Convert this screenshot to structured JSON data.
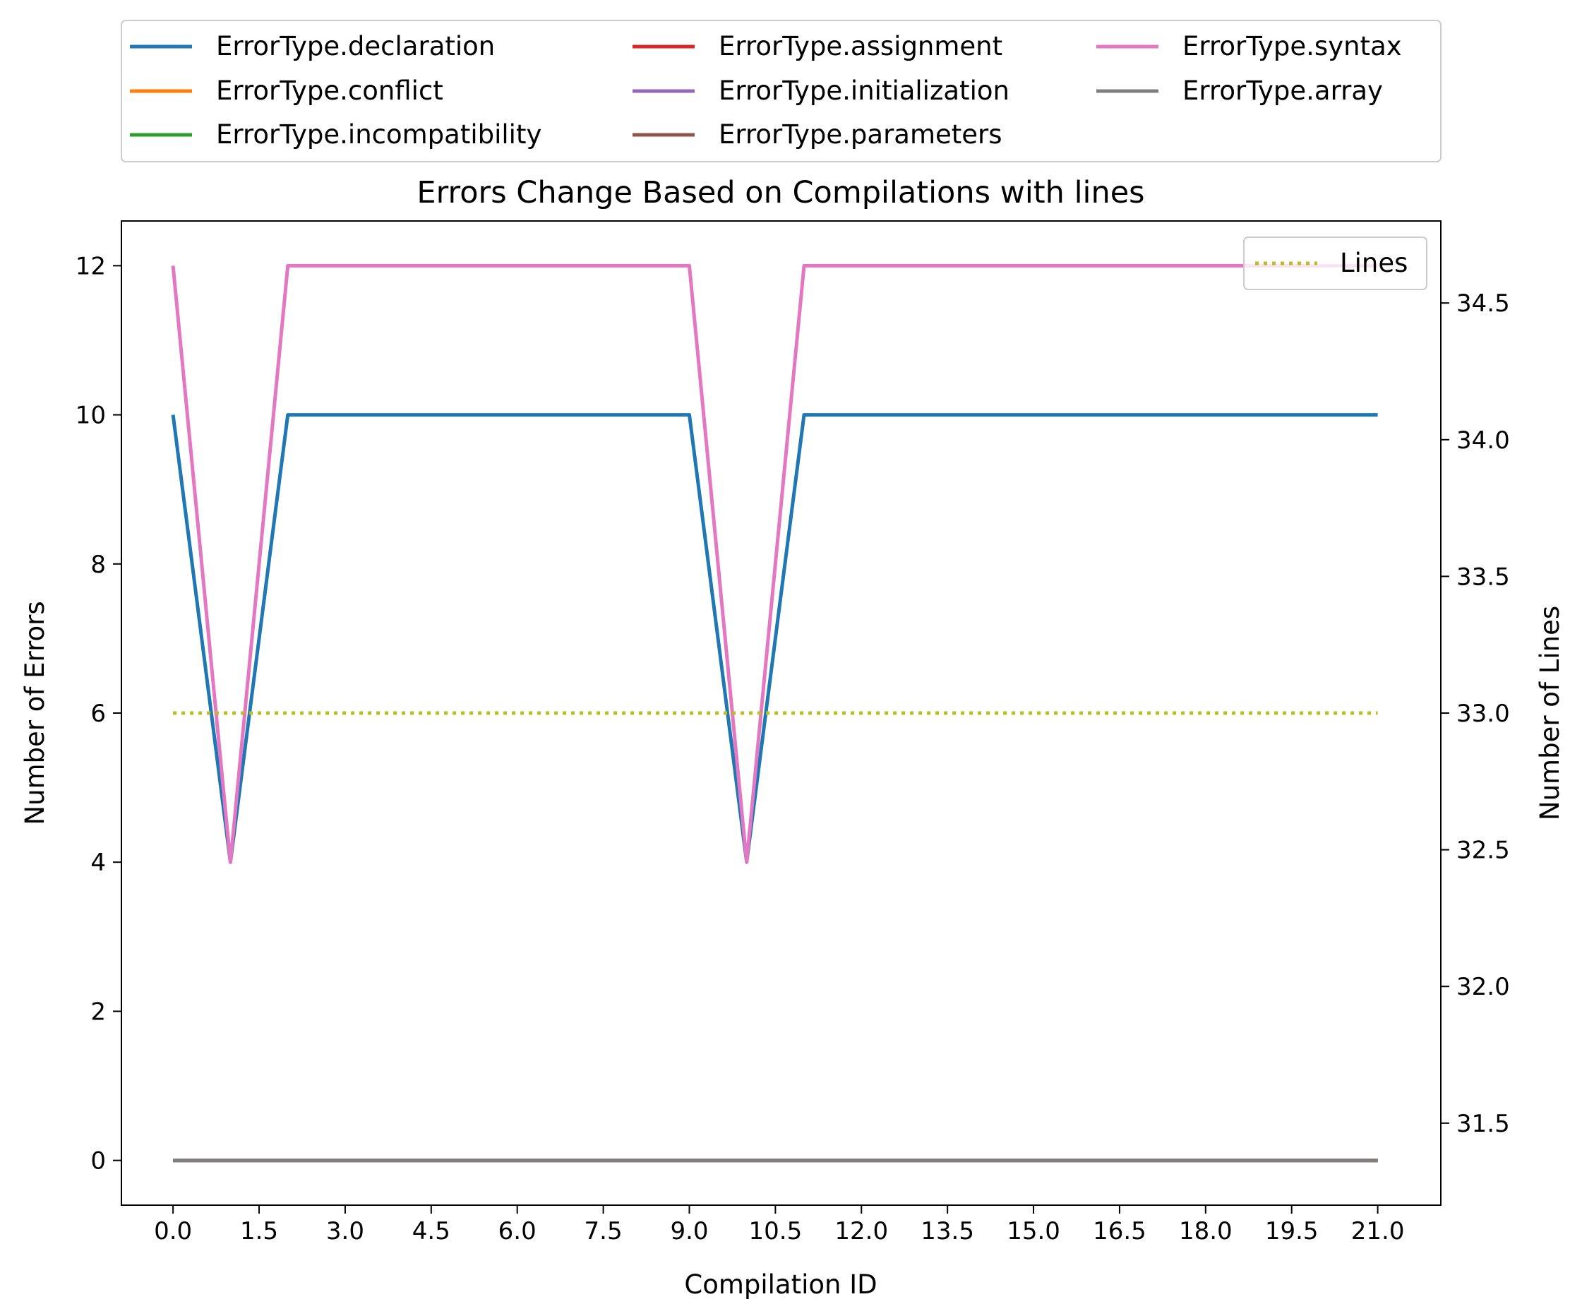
{
  "chart_data": {
    "type": "line",
    "title": "Errors Change Based on Compilations with lines",
    "xlabel": "Compilation ID",
    "ylabel": "Number of Errors",
    "y2label": "Number of Lines",
    "xlim": [
      -0.9,
      22.1
    ],
    "ylim": [
      -0.6,
      12.6
    ],
    "y2lim": [
      31.2,
      34.8
    ],
    "x_ticks": [
      0.0,
      1.5,
      3.0,
      4.5,
      6.0,
      7.5,
      9.0,
      10.5,
      12.0,
      13.5,
      15.0,
      16.5,
      18.0,
      19.5,
      21.0
    ],
    "x_tick_labels": [
      "0.0",
      "1.5",
      "3.0",
      "4.5",
      "6.0",
      "7.5",
      "9.0",
      "10.5",
      "12.0",
      "13.5",
      "15.0",
      "16.5",
      "18.0",
      "19.5",
      "21.0"
    ],
    "y_ticks": [
      0,
      2,
      4,
      6,
      8,
      10,
      12
    ],
    "y_tick_labels": [
      "0",
      "2",
      "4",
      "6",
      "8",
      "10",
      "12"
    ],
    "y2_ticks": [
      31.5,
      32.0,
      32.5,
      33.0,
      33.5,
      34.0,
      34.5
    ],
    "y2_tick_labels": [
      "31.5",
      "32.0",
      "32.5",
      "33.0",
      "33.5",
      "34.0",
      "34.5"
    ],
    "x": [
      0,
      1,
      2,
      3,
      4,
      5,
      6,
      7,
      8,
      9,
      10,
      11,
      12,
      13,
      14,
      15,
      16,
      17,
      18,
      19,
      20,
      21
    ],
    "grid": false,
    "legend_placement": "above plot, 3 columns",
    "series": [
      {
        "name": "ErrorType.declaration",
        "color": "#1f77b4",
        "axis": "left",
        "values": [
          10,
          4,
          10,
          10,
          10,
          10,
          10,
          10,
          10,
          10,
          4,
          10,
          10,
          10,
          10,
          10,
          10,
          10,
          10,
          10,
          10,
          10
        ]
      },
      {
        "name": "ErrorType.conflict",
        "color": "#ff7f0e",
        "axis": "left",
        "values": [
          0,
          0,
          0,
          0,
          0,
          0,
          0,
          0,
          0,
          0,
          0,
          0,
          0,
          0,
          0,
          0,
          0,
          0,
          0,
          0,
          0,
          0
        ]
      },
      {
        "name": "ErrorType.incompatibility",
        "color": "#2ca02c",
        "axis": "left",
        "values": [
          0,
          0,
          0,
          0,
          0,
          0,
          0,
          0,
          0,
          0,
          0,
          0,
          0,
          0,
          0,
          0,
          0,
          0,
          0,
          0,
          0,
          0
        ]
      },
      {
        "name": "ErrorType.assignment",
        "color": "#d62728",
        "axis": "left",
        "values": [
          0,
          0,
          0,
          0,
          0,
          0,
          0,
          0,
          0,
          0,
          0,
          0,
          0,
          0,
          0,
          0,
          0,
          0,
          0,
          0,
          0,
          0
        ]
      },
      {
        "name": "ErrorType.initialization",
        "color": "#9467bd",
        "axis": "left",
        "values": [
          0,
          0,
          0,
          0,
          0,
          0,
          0,
          0,
          0,
          0,
          0,
          0,
          0,
          0,
          0,
          0,
          0,
          0,
          0,
          0,
          0,
          0
        ]
      },
      {
        "name": "ErrorType.parameters",
        "color": "#8c564b",
        "axis": "left",
        "values": [
          0,
          0,
          0,
          0,
          0,
          0,
          0,
          0,
          0,
          0,
          0,
          0,
          0,
          0,
          0,
          0,
          0,
          0,
          0,
          0,
          0,
          0
        ]
      },
      {
        "name": "ErrorType.syntax",
        "color": "#e377c2",
        "axis": "left",
        "values": [
          12,
          4,
          12,
          12,
          12,
          12,
          12,
          12,
          12,
          12,
          4,
          12,
          12,
          12,
          12,
          12,
          12,
          12,
          12,
          12,
          12,
          12
        ]
      },
      {
        "name": "ErrorType.array",
        "color": "#7f7f7f",
        "axis": "left",
        "values": [
          0,
          0,
          0,
          0,
          0,
          0,
          0,
          0,
          0,
          0,
          0,
          0,
          0,
          0,
          0,
          0,
          0,
          0,
          0,
          0,
          0,
          0
        ]
      },
      {
        "name": "Lines",
        "color": "#bcbd22",
        "axis": "right",
        "dash": "dotted",
        "separate_legend": true,
        "values": [
          33,
          33,
          33,
          33,
          33,
          33,
          33,
          33,
          33,
          33,
          33,
          33,
          33,
          33,
          33,
          33,
          33,
          33,
          33,
          33,
          33,
          33
        ]
      }
    ]
  }
}
